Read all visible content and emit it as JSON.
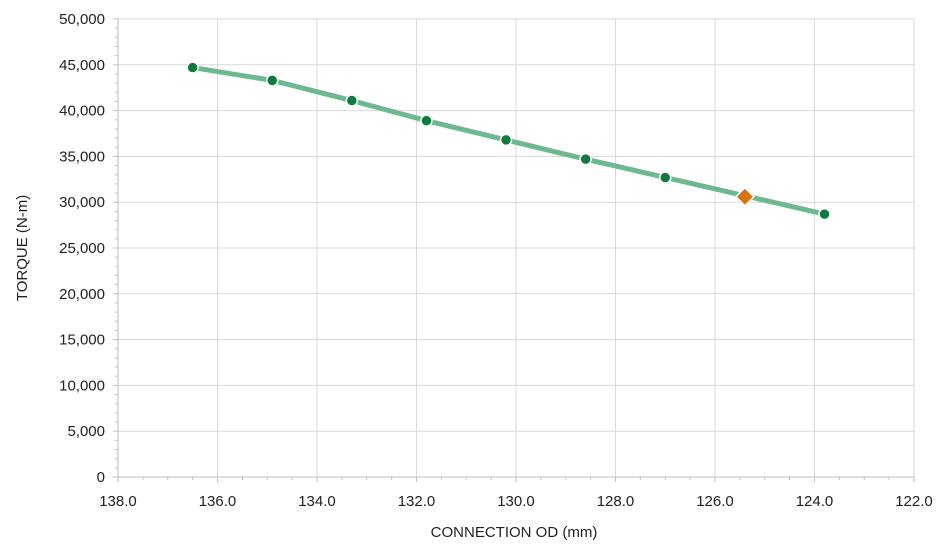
{
  "chart_data": {
    "type": "line",
    "xlabel": "CONNECTION OD (mm)",
    "ylabel": "TORQUE (N-m)",
    "x_reversed": true,
    "xlim": [
      122.0,
      138.0
    ],
    "ylim": [
      0,
      50000
    ],
    "x_ticks": [
      "138.0",
      "136.0",
      "134.0",
      "132.0",
      "130.0",
      "128.0",
      "126.0",
      "124.0",
      "122.0"
    ],
    "y_ticks": [
      "0",
      "5,000",
      "10,000",
      "15,000",
      "20,000",
      "25,000",
      "30,000",
      "35,000",
      "40,000",
      "45,000",
      "50,000"
    ],
    "grid": true,
    "legend": "none",
    "series": [
      {
        "color": "#6db98f",
        "marker_color": "#0e7a3e",
        "points": [
          {
            "x": 136.5,
            "y": 44700
          },
          {
            "x": 134.9,
            "y": 43300
          },
          {
            "x": 133.3,
            "y": 41100
          },
          {
            "x": 131.8,
            "y": 38900
          },
          {
            "x": 130.2,
            "y": 36800
          },
          {
            "x": 128.6,
            "y": 34700
          },
          {
            "x": 127.0,
            "y": 32700
          },
          {
            "x": 123.8,
            "y": 28700
          }
        ]
      }
    ],
    "highlight_point": {
      "x": 125.4,
      "y": 30600,
      "color": "#d9720f",
      "marker": "diamond"
    }
  }
}
